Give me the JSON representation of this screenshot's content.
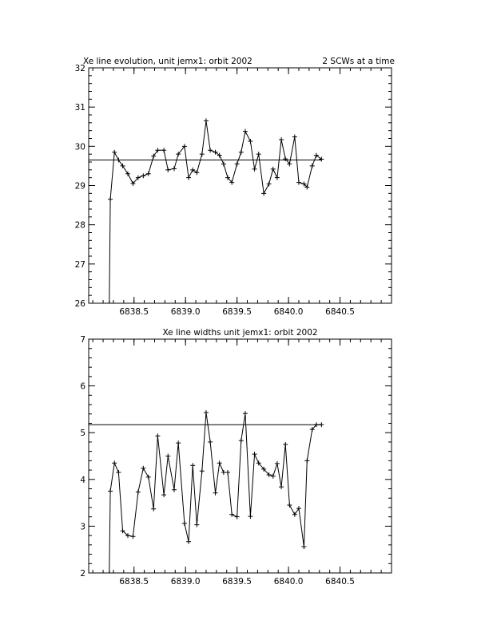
{
  "chart_data": [
    {
      "type": "line",
      "title": "Xe line evolution, unit jemx1: orbit 2002",
      "subtitle": "2 SCWs at a time",
      "x": [
        6838.26,
        6838.27,
        6838.31,
        6838.35,
        6838.39,
        6838.44,
        6838.49,
        6838.54,
        6838.59,
        6838.64,
        6838.69,
        6838.73,
        6838.79,
        6838.83,
        6838.89,
        6838.93,
        6838.99,
        6839.03,
        6839.07,
        6839.11,
        6839.16,
        6839.2,
        6839.24,
        6839.29,
        6839.33,
        6839.37,
        6839.41,
        6839.45,
        6839.5,
        6839.54,
        6839.58,
        6839.63,
        6839.67,
        6839.71,
        6839.76,
        6839.81,
        6839.85,
        6839.89,
        6839.93,
        6839.97,
        6840.01,
        6840.06,
        6840.1,
        6840.15,
        6840.18,
        6840.23,
        6840.27,
        6840.32
      ],
      "values": [
        26.0,
        28.65,
        29.85,
        29.65,
        29.5,
        29.3,
        29.05,
        29.2,
        29.25,
        29.3,
        29.75,
        29.9,
        29.9,
        29.4,
        29.43,
        29.8,
        30.0,
        29.2,
        29.4,
        29.33,
        29.8,
        30.65,
        29.9,
        29.85,
        29.77,
        29.55,
        29.2,
        29.08,
        29.55,
        29.85,
        30.38,
        30.13,
        29.42,
        29.8,
        28.8,
        29.04,
        29.42,
        29.2,
        30.17,
        29.68,
        29.55,
        30.24,
        29.08,
        29.04,
        28.96,
        29.5,
        29.77,
        29.67
      ],
      "reference_line": 29.65,
      "color": "#000000",
      "xlim": [
        6838.06,
        6841.0
      ],
      "xticks": [
        6838.5,
        {
          "value": 6839.0,
          "label": "6839.0"
        },
        6839.5,
        {
          "value": 6840.0,
          "label": "6840.0"
        },
        6840.5
      ],
      "ylim": [
        26,
        32
      ],
      "yticks": [
        26,
        27,
        28,
        29,
        30,
        31,
        32
      ]
    },
    {
      "type": "line",
      "title": "Xe line widths unit jemx1: orbit 2002",
      "x": [
        6838.26,
        6838.27,
        6838.31,
        6838.35,
        6838.39,
        6838.44,
        6838.49,
        6838.54,
        6838.59,
        6838.64,
        6838.69,
        6838.73,
        6838.79,
        6838.83,
        6838.89,
        6838.93,
        6838.99,
        6839.03,
        6839.07,
        6839.11,
        6839.16,
        6839.2,
        6839.24,
        6839.29,
        6839.33,
        6839.37,
        6839.41,
        6839.45,
        6839.5,
        6839.54,
        6839.58,
        6839.63,
        6839.67,
        6839.71,
        6839.76,
        6839.81,
        6839.85,
        6839.89,
        6839.93,
        6839.97,
        6840.01,
        6840.06,
        6840.1,
        6840.15,
        6840.18,
        6840.23,
        6840.27,
        6840.32
      ],
      "values": [
        2.0,
        3.75,
        4.35,
        4.15,
        2.9,
        2.8,
        2.78,
        3.73,
        4.24,
        4.05,
        3.37,
        4.93,
        3.67,
        4.5,
        3.78,
        4.78,
        3.06,
        2.67,
        4.3,
        3.03,
        4.18,
        5.43,
        4.8,
        3.71,
        4.35,
        4.15,
        4.15,
        3.25,
        3.2,
        4.83,
        5.41,
        3.21,
        4.54,
        4.35,
        4.22,
        4.1,
        4.07,
        4.34,
        3.84,
        4.75,
        3.45,
        3.25,
        3.38,
        2.56,
        4.4,
        5.07,
        5.17,
        5.17
      ],
      "reference_line": 5.17,
      "color": "#000000",
      "xlim": [
        6838.06,
        6841.0
      ],
      "xticks": [
        6838.5,
        {
          "value": 6839.0,
          "label": "6839.0"
        },
        6839.5,
        {
          "value": 6840.0,
          "label": "6840.0"
        },
        6840.5
      ],
      "ylim": [
        2,
        7
      ],
      "yticks": [
        2,
        3,
        4,
        5,
        6,
        7
      ]
    }
  ]
}
